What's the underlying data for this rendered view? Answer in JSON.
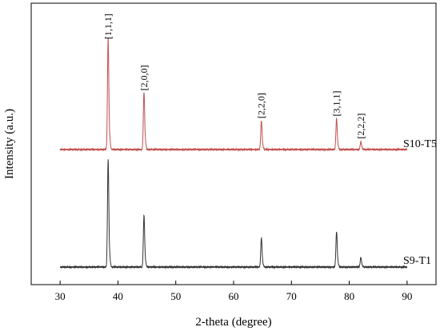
{
  "chart_data": {
    "type": "line",
    "xlabel": "2-theta (degree)",
    "ylabel": "Intensity (a.u.)",
    "xlim": [
      25,
      95
    ],
    "xticks": [
      30,
      40,
      50,
      60,
      70,
      80,
      90
    ],
    "y_tick_labels_shown": false,
    "grid": false,
    "legend": "none",
    "x_range_plotted": [
      30,
      90
    ],
    "series": [
      {
        "name": "S10-T5",
        "color": "#c0504d",
        "peaks": [
          {
            "x": 38.3,
            "height": 1.0
          },
          {
            "x": 44.5,
            "height": 0.52
          },
          {
            "x": 64.8,
            "height": 0.26
          },
          {
            "x": 77.8,
            "height": 0.28
          },
          {
            "x": 82.0,
            "height": 0.07
          }
        ]
      },
      {
        "name": "S9-T1",
        "color": "#333333",
        "peaks": [
          {
            "x": 38.3,
            "height": 1.0
          },
          {
            "x": 44.5,
            "height": 0.48
          },
          {
            "x": 64.8,
            "height": 0.27
          },
          {
            "x": 77.8,
            "height": 0.33
          },
          {
            "x": 82.0,
            "height": 0.09
          }
        ]
      }
    ],
    "annotations": [
      {
        "text": "[1,1,1]",
        "x": 38.3
      },
      {
        "text": "[2,0,0]",
        "x": 44.5
      },
      {
        "text": "[2,2,0]",
        "x": 64.8
      },
      {
        "text": "[3,1,1]",
        "x": 77.8
      },
      {
        "text": "[2,2,2]",
        "x": 82.0
      }
    ]
  }
}
